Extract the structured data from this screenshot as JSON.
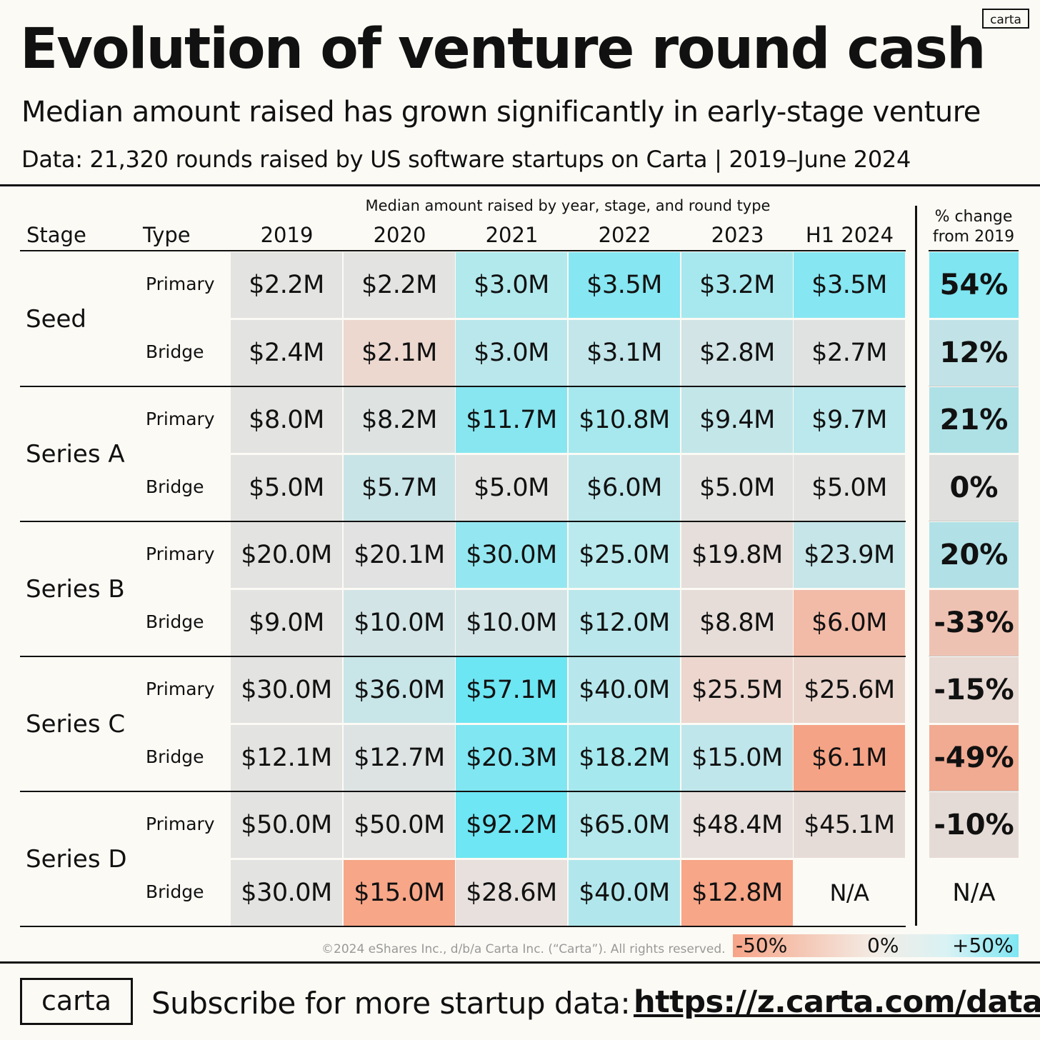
{
  "header": {
    "title": "Evolution of venture round cash",
    "subtitle": "Median amount raised has grown significantly in early-stage venture",
    "dataline": "Data: 21,320 rounds raised by US software startups on Carta | 2019–June 2024",
    "logo": "carta"
  },
  "chart_data": {
    "type": "table",
    "caption": "Median amount raised by year, stage, and round type",
    "stage_header": "Stage",
    "type_header": "Type",
    "columns": [
      "2019",
      "2020",
      "2021",
      "2022",
      "2023",
      "H1 2024"
    ],
    "change_header_1": "% change",
    "change_header_2": "from 2019",
    "rows": [
      {
        "stage": "Seed",
        "type": "Primary",
        "values": [
          "$2.2M",
          "$2.2M",
          "$3.0M",
          "$3.5M",
          "$3.2M",
          "$3.5M"
        ],
        "change": "54%"
      },
      {
        "stage": "Seed",
        "type": "Bridge",
        "values": [
          "$2.4M",
          "$2.1M",
          "$3.0M",
          "$3.1M",
          "$2.8M",
          "$2.7M"
        ],
        "change": "12%"
      },
      {
        "stage": "Series A",
        "type": "Primary",
        "values": [
          "$8.0M",
          "$8.2M",
          "$11.7M",
          "$10.8M",
          "$9.4M",
          "$9.7M"
        ],
        "change": "21%"
      },
      {
        "stage": "Series A",
        "type": "Bridge",
        "values": [
          "$5.0M",
          "$5.7M",
          "$5.0M",
          "$6.0M",
          "$5.0M",
          "$5.0M"
        ],
        "change": "0%"
      },
      {
        "stage": "Series B",
        "type": "Primary",
        "values": [
          "$20.0M",
          "$20.1M",
          "$30.0M",
          "$25.0M",
          "$19.8M",
          "$23.9M"
        ],
        "change": "20%"
      },
      {
        "stage": "Series B",
        "type": "Bridge",
        "values": [
          "$9.0M",
          "$10.0M",
          "$10.0M",
          "$12.0M",
          "$8.8M",
          "$6.0M"
        ],
        "change": "-33%"
      },
      {
        "stage": "Series C",
        "type": "Primary",
        "values": [
          "$30.0M",
          "$36.0M",
          "$57.1M",
          "$40.0M",
          "$25.5M",
          "$25.6M"
        ],
        "change": "-15%"
      },
      {
        "stage": "Series C",
        "type": "Bridge",
        "values": [
          "$12.1M",
          "$12.7M",
          "$20.3M",
          "$18.2M",
          "$15.0M",
          "$6.1M"
        ],
        "change": "-49%"
      },
      {
        "stage": "Series D",
        "type": "Primary",
        "values": [
          "$50.0M",
          "$50.0M",
          "$92.2M",
          "$65.0M",
          "$48.4M",
          "$45.1M"
        ],
        "change": "-10%"
      },
      {
        "stage": "Series D",
        "type": "Bridge",
        "values": [
          "$30.0M",
          "$15.0M",
          "$28.6M",
          "$40.0M",
          "$12.8M",
          "N/A"
        ],
        "change": "N/A"
      }
    ],
    "cell_colors": [
      [
        "#e3e3e1",
        "#e3e3e1",
        "#b2e9ec",
        "#86e6f1",
        "#a7e8ee",
        "#86e6f1"
      ],
      [
        "#e3e3e1",
        "#ecd8cf",
        "#bae7eb",
        "#c2e6ea",
        "#d2e4e5",
        "#dfe2e1"
      ],
      [
        "#e3e3e1",
        "#dee3e2",
        "#87e6f0",
        "#a6e8ed",
        "#c3e6e9",
        "#bae8ec"
      ],
      [
        "#e3e3e1",
        "#c9e4e6",
        "#e3e3e1",
        "#bde7eb",
        "#e3e3e1",
        "#e3e3e1"
      ],
      [
        "#e3e3e1",
        "#e1e2e1",
        "#94e7f0",
        "#baeaed",
        "#e5dedb",
        "#c5e5e8"
      ],
      [
        "#e3e3e1",
        "#d2e4e6",
        "#d2e4e6",
        "#b9e7eb",
        "#e6ddd9",
        "#f2bba8"
      ],
      [
        "#e3e3e1",
        "#c8e5e8",
        "#6de6f3",
        "#b7e7ec",
        "#ecd6ce",
        "#ebd6cd"
      ],
      [
        "#e3e3e1",
        "#dde3e2",
        "#7fe6f2",
        "#a5e8ee",
        "#bfe6eb",
        "#f5a386"
      ],
      [
        "#e3e3e1",
        "#e3e3e1",
        "#6ee6f3",
        "#b4e8ec",
        "#e7e0dc",
        "#e6dcd7"
      ],
      [
        "#e3e3e1",
        "#f7a688",
        "#e7e0dc",
        "#b1e7ec",
        "#f7a688",
        "#fcfaf5"
      ]
    ],
    "change_colors": [
      "#7fe5f1",
      "#c1e3e7",
      "#aee1e6",
      "#e0e0de",
      "#b1e1e6",
      "#eec2b2",
      "#e7d9d3",
      "#f0ab92",
      "#e5dbd6",
      "#fcfaf5"
    ],
    "legend": {
      "min": "-50%",
      "mid": "0%",
      "max": "+50%",
      "low_color": "#f6a487",
      "high_color": "#7ee6f3"
    }
  },
  "footer": {
    "copyright": "©2024 eShares Inc., d/b/a Carta Inc. (“Carta”). All rights reserved.",
    "logo": "carta",
    "subscribe": "Subscribe for more startup data:",
    "link": "https://z.carta.com/data"
  }
}
